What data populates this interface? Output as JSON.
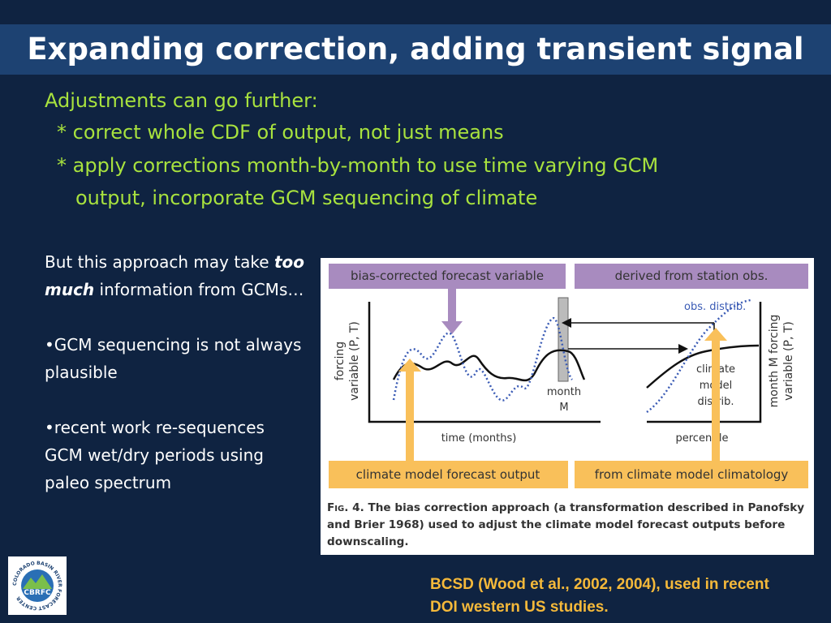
{
  "header": {
    "title": "Expanding correction, adding transient signal"
  },
  "intro": {
    "lines": [
      "Adjustments can go further:",
      "* correct whole CDF of output, not just means",
      "* apply corrections month-by-month to use time varying GCM",
      "output, incorporate GCM sequencing of climate"
    ]
  },
  "left_text": {
    "lead_before": "But this approach may take",
    "lead_emphasis": "too much",
    "lead_after": "information from GCMs…",
    "bullets": [
      "•GCM sequencing is not always plausible",
      "•recent work re-sequences GCM wet/dry periods using paleo spectrum"
    ]
  },
  "figure": {
    "top_left_box": "bias-corrected forecast variable",
    "top_right_box": "derived from station obs.",
    "obs_label": "obs. distrib.",
    "left_axis_label": [
      "forcing",
      "variable (P, T)"
    ],
    "month_label": [
      "month",
      "M"
    ],
    "left_x_label": "time (months)",
    "model_label": [
      "climate",
      "model",
      "distrib."
    ],
    "right_axis_label": [
      "month M forcing",
      "variable (P, T)"
    ],
    "right_x_label": "percentile",
    "bottom_left_box": "climate model forecast output",
    "bottom_right_box": "from climate model climatology",
    "caption_label": "Fig. 4.",
    "caption_text": "The bias correction approach (a transformation described in Panofsky and Brier 1968) used to adjust the climate model forecast outputs before downscaling."
  },
  "footnote": "BCSD (Wood et al., 2002, 2004), used in recent DOI western US studies.",
  "logo": {
    "label": "CBRFC",
    "ring": "COLORADO BASIN RIVER FORECAST CENTER"
  }
}
